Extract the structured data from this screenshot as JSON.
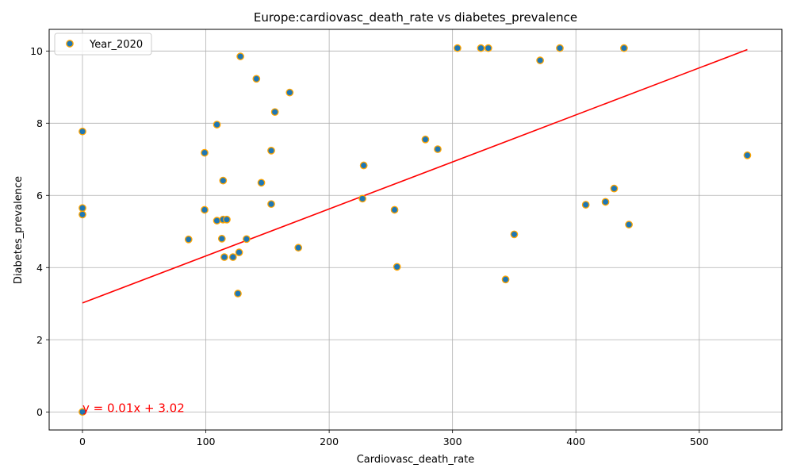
{
  "chart_data": {
    "type": "scatter",
    "title": "Europe:cardiovasc_death_rate vs diabetes_prevalence",
    "xlabel": "Cardiovasc_death_rate",
    "ylabel": "Diabetes_prevalence",
    "xlim": [
      -27,
      567
    ],
    "ylim": [
      -0.5,
      10.6
    ],
    "xticks": [
      0,
      100,
      200,
      300,
      400,
      500
    ],
    "yticks": [
      0,
      2,
      4,
      6,
      8,
      10
    ],
    "grid": true,
    "legend_position": "top-left",
    "series": [
      {
        "name": "Year_2020",
        "marker_face": "#1f77b4",
        "marker_edge": "#ffa500",
        "points": [
          [
            0,
            0.0
          ],
          [
            0,
            7.77
          ],
          [
            0,
            5.65
          ],
          [
            0,
            5.47
          ],
          [
            86,
            4.78
          ],
          [
            99,
            7.18
          ],
          [
            99,
            5.6
          ],
          [
            109,
            7.96
          ],
          [
            109,
            5.3
          ],
          [
            113,
            4.8
          ],
          [
            114,
            6.41
          ],
          [
            114,
            5.33
          ],
          [
            115,
            4.29
          ],
          [
            117,
            5.33
          ],
          [
            122,
            4.29
          ],
          [
            126,
            3.28
          ],
          [
            127,
            4.42
          ],
          [
            128,
            9.85
          ],
          [
            133,
            4.79
          ],
          [
            141,
            9.23
          ],
          [
            145,
            6.35
          ],
          [
            153,
            7.24
          ],
          [
            153,
            5.76
          ],
          [
            156,
            8.31
          ],
          [
            168,
            8.85
          ],
          [
            175,
            4.55
          ],
          [
            227,
            5.91
          ],
          [
            228,
            6.83
          ],
          [
            253,
            5.6
          ],
          [
            255,
            4.02
          ],
          [
            278,
            7.55
          ],
          [
            288,
            7.28
          ],
          [
            304,
            10.08
          ],
          [
            323,
            10.08
          ],
          [
            329,
            10.08
          ],
          [
            343,
            3.67
          ],
          [
            350,
            4.92
          ],
          [
            371,
            9.74
          ],
          [
            387,
            10.08
          ],
          [
            408,
            5.74
          ],
          [
            424,
            5.82
          ],
          [
            431,
            6.19
          ],
          [
            439,
            10.08
          ],
          [
            443,
            5.19
          ],
          [
            539,
            7.11
          ]
        ]
      }
    ],
    "fit_line": {
      "color": "#ff0000",
      "x_range": [
        0,
        539
      ],
      "y_range": [
        3.02,
        10.04
      ],
      "equation_label": "y = 0.01x + 3.02",
      "equation_anchor": [
        0,
        0.0
      ]
    }
  }
}
